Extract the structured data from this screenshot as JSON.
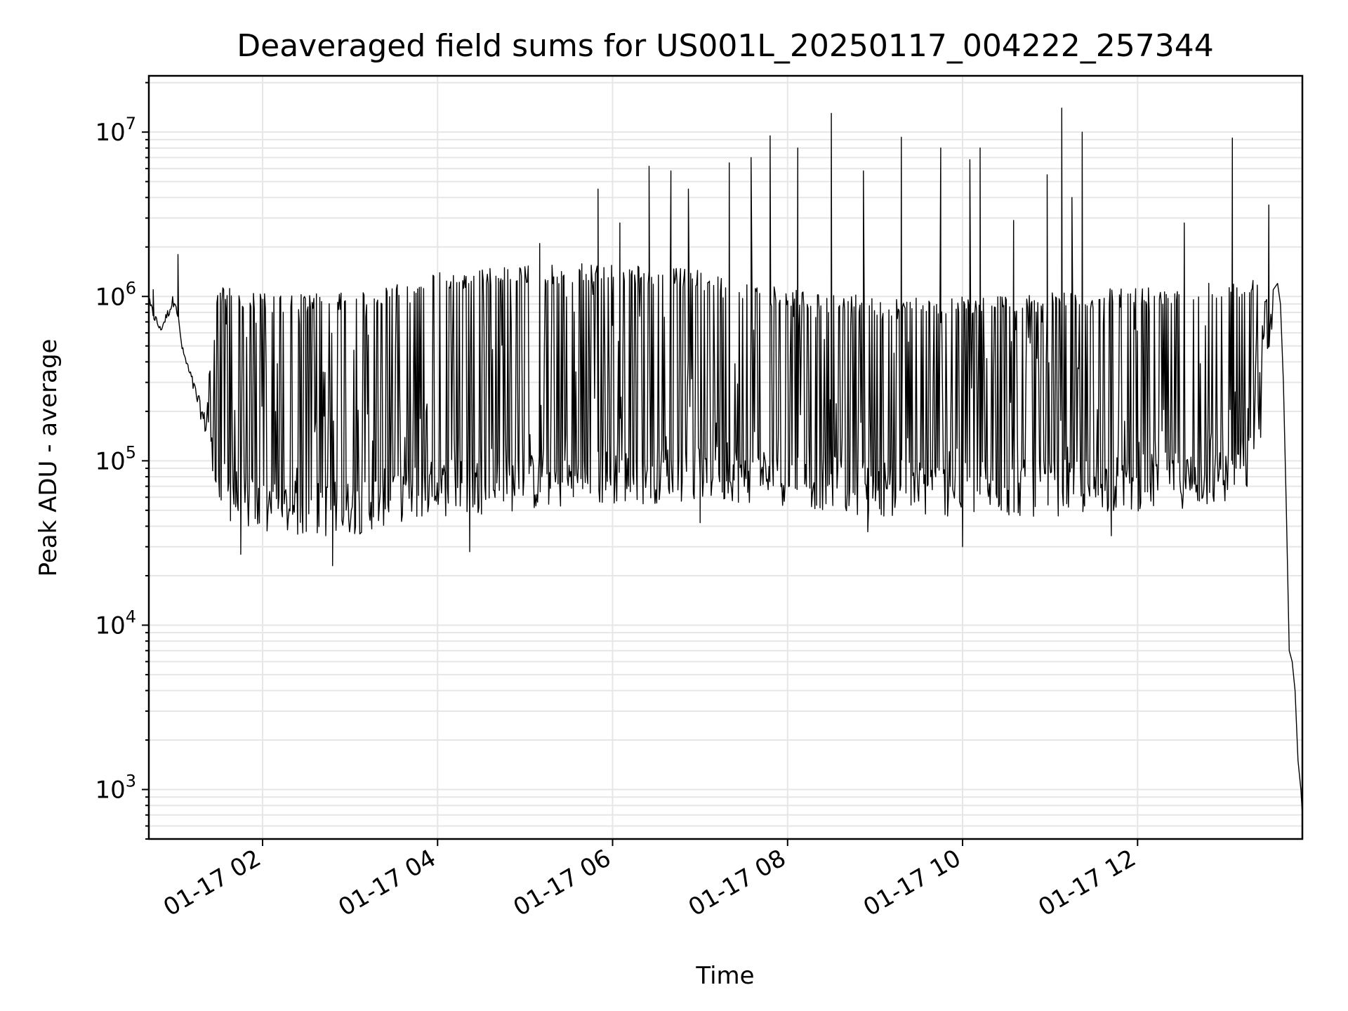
{
  "chart_data": {
    "type": "line",
    "title": "Deaveraged field sums for US001L_20250117_004222_257344",
    "xlabel": "Time",
    "ylabel": "Peak ADU - average",
    "y_scale": "log",
    "ylim": [
      500,
      22000000
    ],
    "xlim": [
      "2025-01-17 00:42",
      "2025-01-17 13:53"
    ],
    "grid": true,
    "x_ticks": [
      {
        "value": "2025-01-17 02:00",
        "label": "01-17 02"
      },
      {
        "value": "2025-01-17 04:00",
        "label": "01-17 04"
      },
      {
        "value": "2025-01-17 06:00",
        "label": "01-17 06"
      },
      {
        "value": "2025-01-17 08:00",
        "label": "01-17 08"
      },
      {
        "value": "2025-01-17 10:00",
        "label": "01-17 10"
      },
      {
        "value": "2025-01-17 12:00",
        "label": "01-17 12"
      }
    ],
    "y_ticks": [
      {
        "value": 1000,
        "base": "10",
        "exp": "3"
      },
      {
        "value": 10000,
        "base": "10",
        "exp": "4"
      },
      {
        "value": 100000,
        "base": "10",
        "exp": "5"
      },
      {
        "value": 1000000,
        "base": "10",
        "exp": "6"
      },
      {
        "value": 10000000,
        "base": "10",
        "exp": "7"
      }
    ],
    "series": [
      {
        "color": "#000000",
        "trend": [
          [
            "2025-01-17 00:42",
            1000000,
            800000
          ],
          [
            "2025-01-17 00:50",
            650000,
            600000
          ],
          [
            "2025-01-17 01:00",
            1100000,
            900000
          ],
          [
            "2025-01-17 01:05",
            500000,
            450000
          ],
          [
            "2025-01-17 01:20",
            200000,
            150000
          ],
          [
            "2025-01-17 01:30",
            1200000,
            60000
          ],
          [
            "2025-01-17 02:00",
            1050000,
            45000
          ],
          [
            "2025-01-17 03:00",
            1050000,
            45000
          ],
          [
            "2025-01-17 03:30",
            1200000,
            55000
          ],
          [
            "2025-01-17 04:00",
            1400000,
            60000
          ],
          [
            "2025-01-17 05:00",
            1550000,
            65000
          ],
          [
            "2025-01-17 06:00",
            1600000,
            70000
          ],
          [
            "2025-01-17 07:00",
            1450000,
            75000
          ],
          [
            "2025-01-17 08:00",
            1100000,
            70000
          ],
          [
            "2025-01-17 09:00",
            1000000,
            60000
          ],
          [
            "2025-01-17 10:00",
            1000000,
            60000
          ],
          [
            "2025-01-17 11:00",
            1050000,
            60000
          ],
          [
            "2025-01-17 12:00",
            1150000,
            65000
          ],
          [
            "2025-01-17 13:00",
            1250000,
            70000
          ],
          [
            "2025-01-17 13:20",
            1300000,
            90000
          ],
          [
            "2025-01-17 13:33",
            1100000,
            700000
          ]
        ],
        "tail": [
          [
            "2025-01-17 13:33",
            1100000
          ],
          [
            "2025-01-17 13:36",
            1200000
          ],
          [
            "2025-01-17 13:38",
            900000
          ],
          [
            "2025-01-17 13:40",
            300000
          ],
          [
            "2025-01-17 13:42",
            50000
          ],
          [
            "2025-01-17 13:44",
            7000
          ],
          [
            "2025-01-17 13:46",
            6000
          ],
          [
            "2025-01-17 13:48",
            4000
          ],
          [
            "2025-01-17 13:50",
            1500
          ],
          [
            "2025-01-17 13:52",
            1000
          ],
          [
            "2025-01-17 13:53",
            700
          ]
        ],
        "peaks": [
          [
            "2025-01-17 00:45",
            1100000
          ],
          [
            "2025-01-17 01:02",
            1800000
          ],
          [
            "2025-01-17 05:10",
            2100000
          ],
          [
            "2025-01-17 05:50",
            4500000
          ],
          [
            "2025-01-17 06:05",
            2800000
          ],
          [
            "2025-01-17 06:25",
            6200000
          ],
          [
            "2025-01-17 06:40",
            5800000
          ],
          [
            "2025-01-17 06:52",
            4500000
          ],
          [
            "2025-01-17 07:20",
            6500000
          ],
          [
            "2025-01-17 07:35",
            7000000
          ],
          [
            "2025-01-17 07:48",
            9500000
          ],
          [
            "2025-01-17 08:07",
            8000000
          ],
          [
            "2025-01-17 08:30",
            13000000
          ],
          [
            "2025-01-17 08:52",
            5800000
          ],
          [
            "2025-01-17 09:18",
            9300000
          ],
          [
            "2025-01-17 09:45",
            8000000
          ],
          [
            "2025-01-17 10:05",
            6800000
          ],
          [
            "2025-01-17 10:12",
            8000000
          ],
          [
            "2025-01-17 10:35",
            2900000
          ],
          [
            "2025-01-17 10:58",
            5500000
          ],
          [
            "2025-01-17 11:08",
            14000000
          ],
          [
            "2025-01-17 11:15",
            4000000
          ],
          [
            "2025-01-17 11:22",
            10000000
          ],
          [
            "2025-01-17 12:32",
            2800000
          ],
          [
            "2025-01-17 13:05",
            9200000
          ],
          [
            "2025-01-17 13:30",
            3600000
          ]
        ],
        "dips": [
          [
            "2025-01-17 01:45",
            27000
          ],
          [
            "2025-01-17 02:48",
            23000
          ],
          [
            "2025-01-17 04:22",
            28000
          ],
          [
            "2025-01-17 07:00",
            42000
          ],
          [
            "2025-01-17 08:55",
            37000
          ],
          [
            "2025-01-17 10:00",
            30000
          ],
          [
            "2025-01-17 11:42",
            35000
          ]
        ]
      }
    ]
  }
}
